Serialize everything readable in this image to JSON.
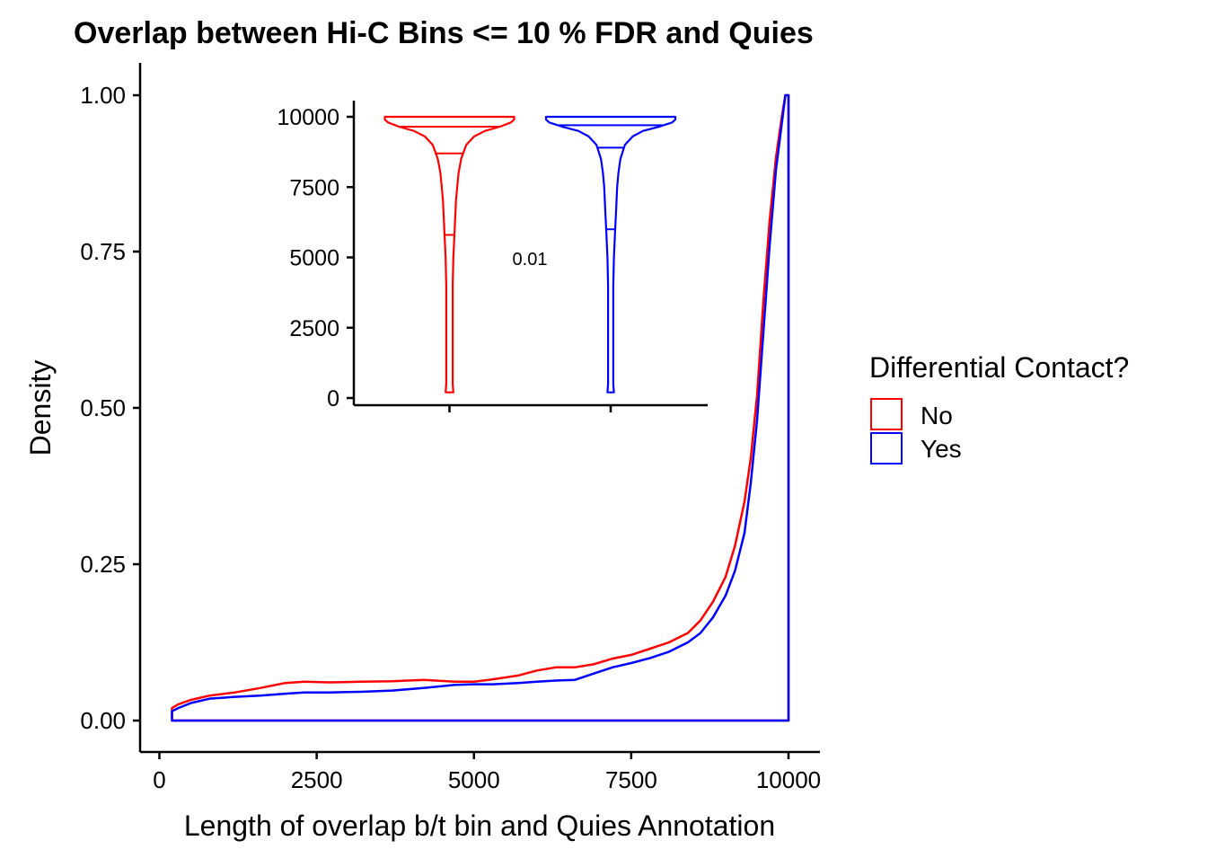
{
  "chart_data": [
    {
      "type": "area",
      "kind": "density",
      "title": "Overlap between Hi-C Bins <= 10 % FDR and Quies",
      "xlabel": "Length of overlap b/t bin and Quies Annotation",
      "ylabel": "Density",
      "xlim": [
        -200,
        10100
      ],
      "ylim": [
        -0.05,
        1.05
      ],
      "xticks": [
        0,
        2500,
        5000,
        7500,
        10000
      ],
      "xtick_labels": [
        "0",
        "2500",
        "5000",
        "7500",
        "10000"
      ],
      "yticks": [
        0,
        0.25,
        0.5,
        0.75,
        1.0
      ],
      "ytick_labels": [
        "0.00",
        "0.25",
        "0.50",
        "0.75",
        "1.00"
      ],
      "grid": false,
      "series": [
        {
          "name": "No",
          "color": "#ff0000",
          "x": [
            200,
            300,
            500,
            800,
            1200,
            1600,
            2000,
            2300,
            2700,
            3200,
            3700,
            4200,
            4700,
            5000,
            5300,
            5700,
            6000,
            6300,
            6600,
            6900,
            7200,
            7500,
            7800,
            8100,
            8400,
            8600,
            8800,
            9000,
            9150,
            9300,
            9400,
            9500,
            9600,
            9700,
            9800,
            9900,
            9950,
            10000
          ],
          "y": [
            0.02,
            0.026,
            0.033,
            0.04,
            0.045,
            0.052,
            0.06,
            0.062,
            0.061,
            0.062,
            0.063,
            0.065,
            0.062,
            0.062,
            0.066,
            0.072,
            0.08,
            0.085,
            0.085,
            0.09,
            0.099,
            0.105,
            0.115,
            0.125,
            0.14,
            0.16,
            0.19,
            0.23,
            0.28,
            0.35,
            0.42,
            0.52,
            0.67,
            0.8,
            0.9,
            0.97,
            1.0,
            1.0
          ]
        },
        {
          "name": "Yes",
          "color": "#0000ff",
          "x": [
            200,
            300,
            500,
            800,
            1200,
            1600,
            2000,
            2300,
            2700,
            3200,
            3700,
            4200,
            4700,
            5000,
            5300,
            5700,
            6000,
            6300,
            6600,
            6900,
            7200,
            7500,
            7800,
            8100,
            8400,
            8600,
            8800,
            9000,
            9150,
            9300,
            9400,
            9500,
            9600,
            9700,
            9800,
            9900,
            9950,
            10000
          ],
          "y": [
            0.015,
            0.02,
            0.028,
            0.035,
            0.038,
            0.04,
            0.043,
            0.045,
            0.045,
            0.046,
            0.048,
            0.052,
            0.057,
            0.058,
            0.058,
            0.06,
            0.062,
            0.064,
            0.065,
            0.075,
            0.085,
            0.092,
            0.1,
            0.11,
            0.125,
            0.14,
            0.165,
            0.2,
            0.24,
            0.3,
            0.38,
            0.48,
            0.62,
            0.76,
            0.88,
            0.96,
            1.0,
            1.0
          ]
        }
      ],
      "legend": {
        "title": "Differential Contact?",
        "position": "right",
        "entries": [
          {
            "label": "No",
            "color": "#ff0000"
          },
          {
            "label": "Yes",
            "color": "#0000ff"
          }
        ]
      }
    },
    {
      "type": "violin",
      "inset": true,
      "xlabel": "",
      "ylabel": "",
      "ylim": [
        0,
        10000
      ],
      "yticks": [
        0,
        2500,
        5000,
        7500,
        10000
      ],
      "ytick_labels": [
        "0",
        "2500",
        "5000",
        "7500",
        "10000"
      ],
      "annotation": "0.01",
      "groups": [
        {
          "name": "No",
          "color": "#ff0000",
          "quantiles": [
            5800,
            8700,
            9650
          ],
          "profile_y": [
            200,
            500,
            1000,
            2000,
            3000,
            4000,
            5000,
            6000,
            6500,
            7000,
            7500,
            8000,
            8500,
            9000,
            9300,
            9500,
            9650,
            9800,
            9900,
            10000
          ],
          "profile_density": [
            0.06,
            0.05,
            0.05,
            0.05,
            0.05,
            0.05,
            0.06,
            0.08,
            0.09,
            0.1,
            0.12,
            0.14,
            0.18,
            0.26,
            0.38,
            0.55,
            0.78,
            0.95,
            1.0,
            1.0
          ]
        },
        {
          "name": "Yes",
          "color": "#0000ff",
          "quantiles": [
            6000,
            8900,
            9700
          ],
          "profile_y": [
            200,
            500,
            1000,
            2000,
            3000,
            4000,
            5000,
            6000,
            6500,
            7000,
            7500,
            8000,
            8500,
            9000,
            9300,
            9500,
            9650,
            9800,
            9900,
            10000
          ],
          "profile_density": [
            0.05,
            0.04,
            0.04,
            0.04,
            0.04,
            0.04,
            0.05,
            0.07,
            0.08,
            0.09,
            0.1,
            0.12,
            0.15,
            0.22,
            0.34,
            0.5,
            0.75,
            0.95,
            1.0,
            1.0
          ]
        }
      ]
    }
  ]
}
